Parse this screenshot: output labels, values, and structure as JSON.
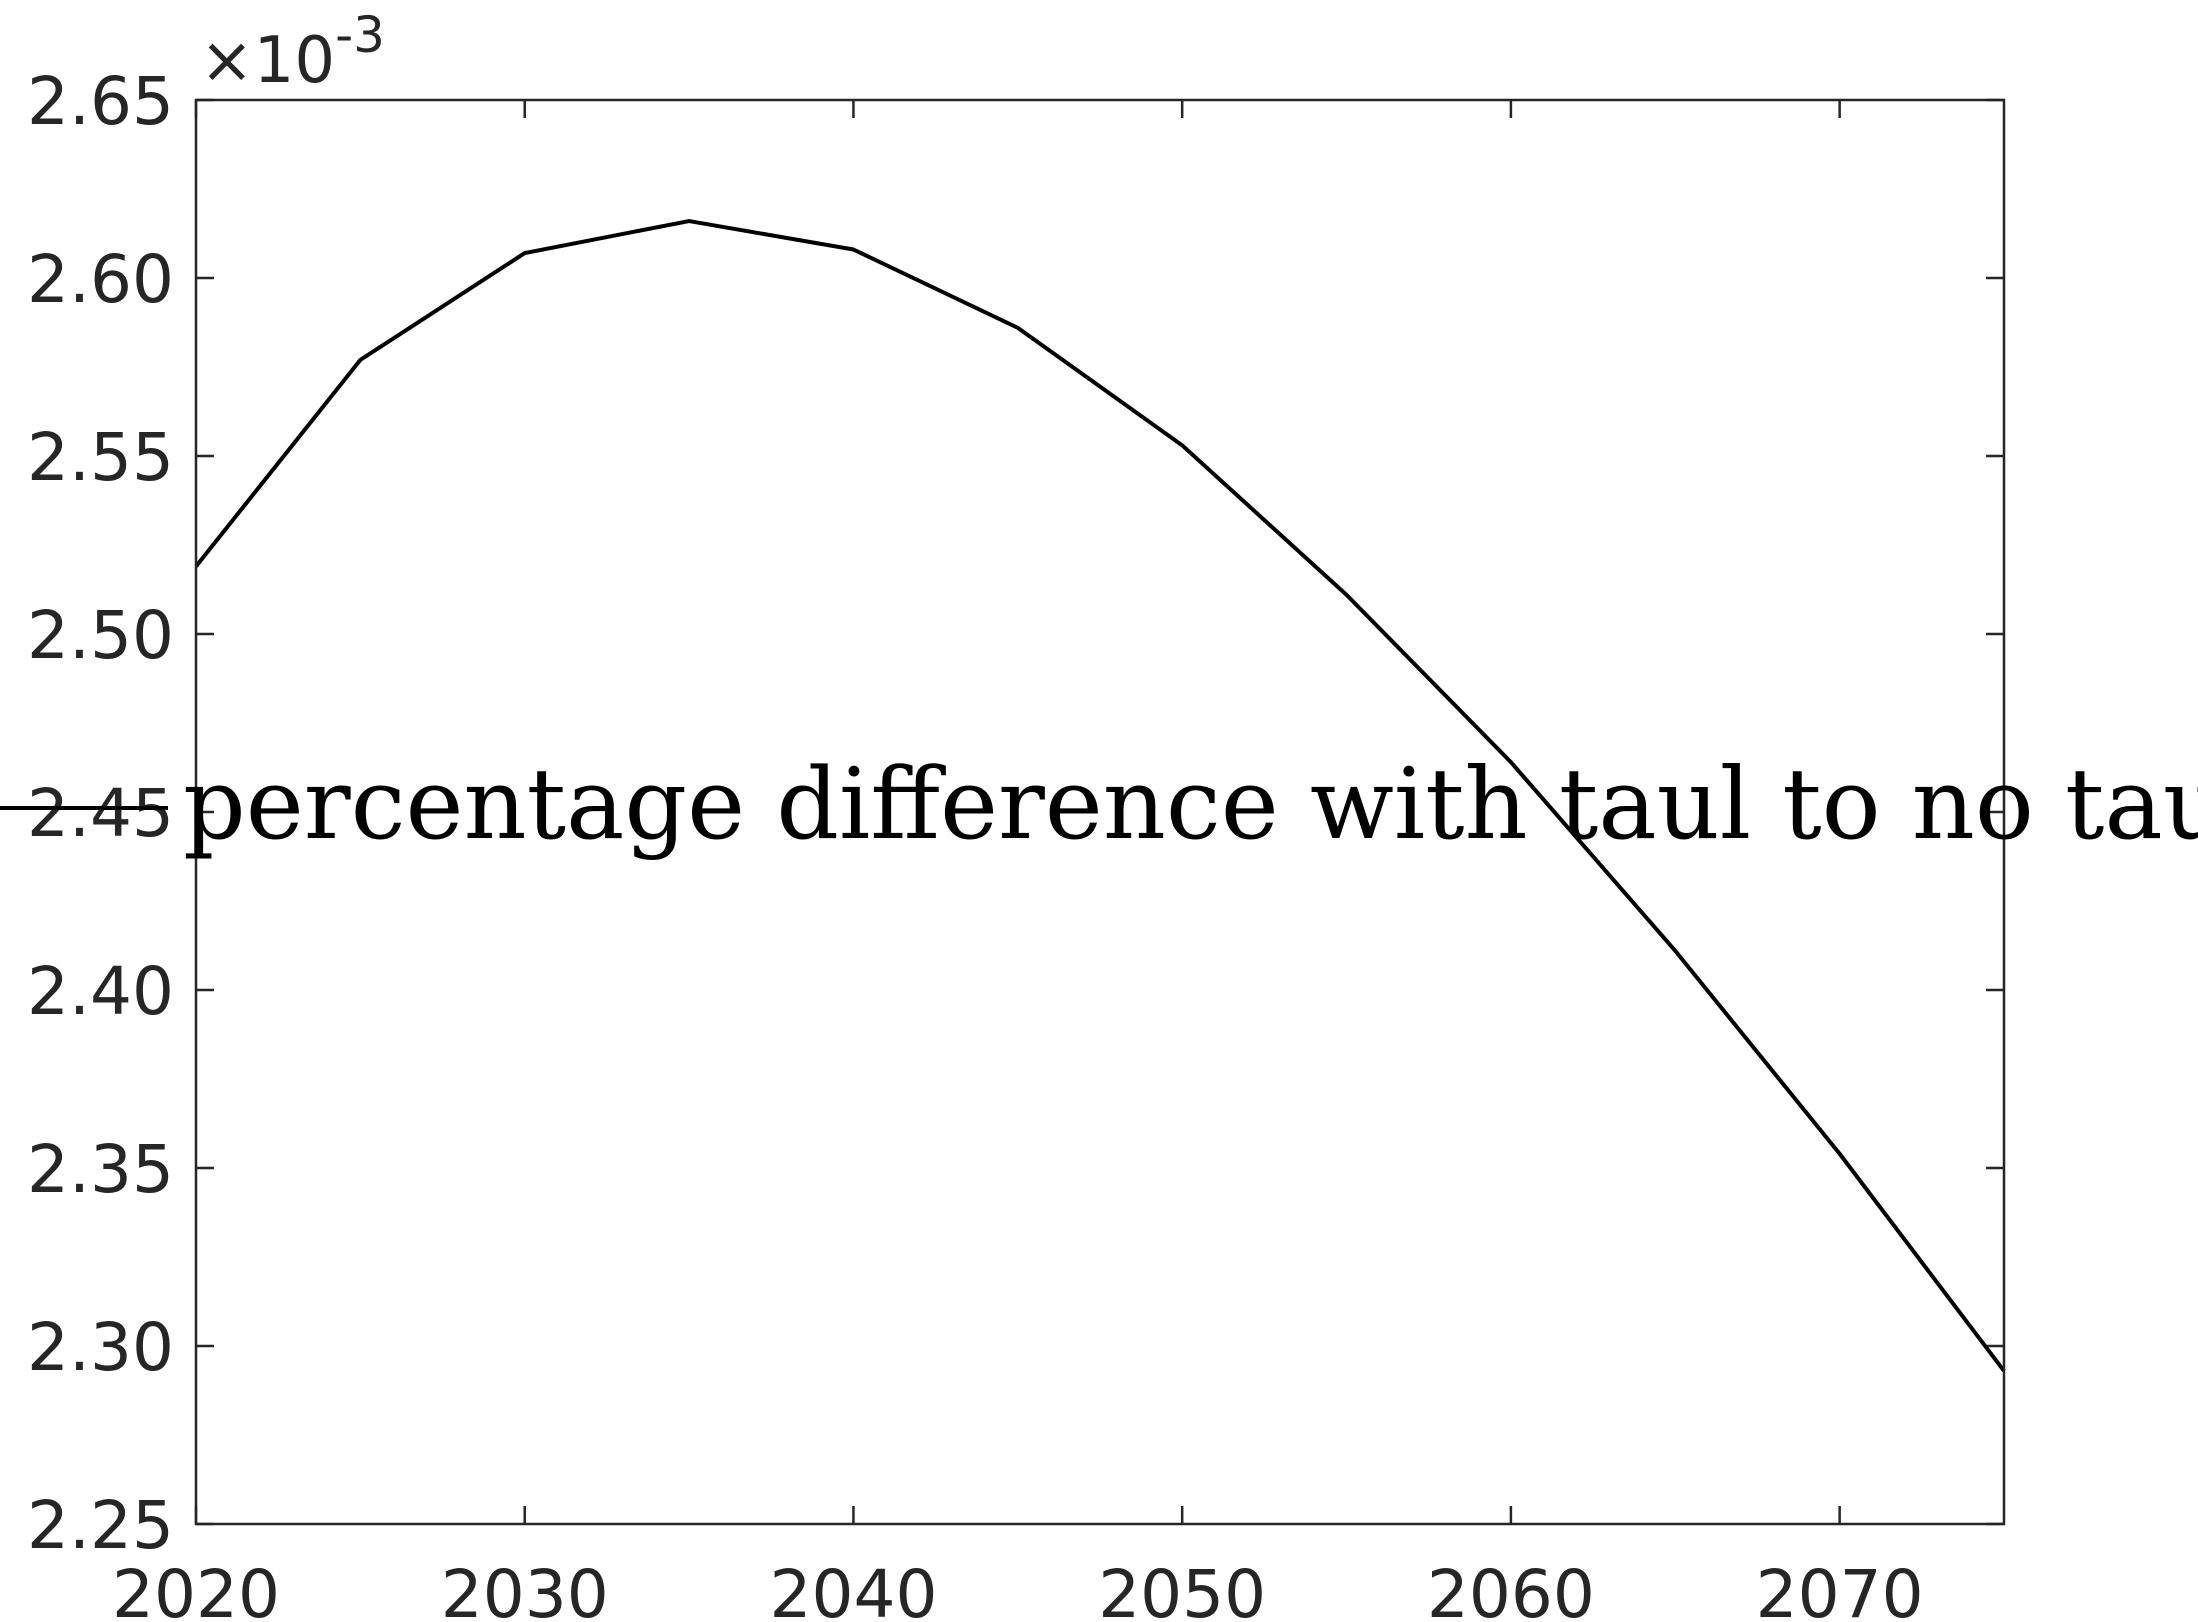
{
  "chart_data": {
    "type": "line",
    "title": "",
    "xlabel": "",
    "ylabel": "",
    "xlim": [
      2020,
      2075
    ],
    "ylim": [
      0.00225,
      0.00265
    ],
    "x_ticks": [
      2020,
      2030,
      2040,
      2050,
      2060,
      2070
    ],
    "y_ticks": [
      2.25,
      2.3,
      2.35,
      2.4,
      2.45,
      2.5,
      2.55,
      2.6,
      2.65
    ],
    "y_tick_labels": [
      "2.25",
      "2.30",
      "2.35",
      "2.40",
      "2.45",
      "2.50",
      "2.55",
      "2.60",
      "2.65"
    ],
    "y_exponent_base": "×10",
    "y_exponent_power": "-3",
    "grid": false,
    "legend_position": "middle",
    "series": [
      {
        "name": "percentage difference with taul to no taul",
        "color": "#000000",
        "x": [
          2020,
          2025,
          2030,
          2035,
          2040,
          2045,
          2050,
          2055,
          2060,
          2065,
          2070,
          2075
        ],
        "y": [
          0.002519,
          0.002577,
          0.002607,
          0.002616,
          0.002608,
          0.002586,
          0.002553,
          0.002511,
          0.002464,
          0.002411,
          0.002354,
          0.002293
        ]
      }
    ]
  }
}
